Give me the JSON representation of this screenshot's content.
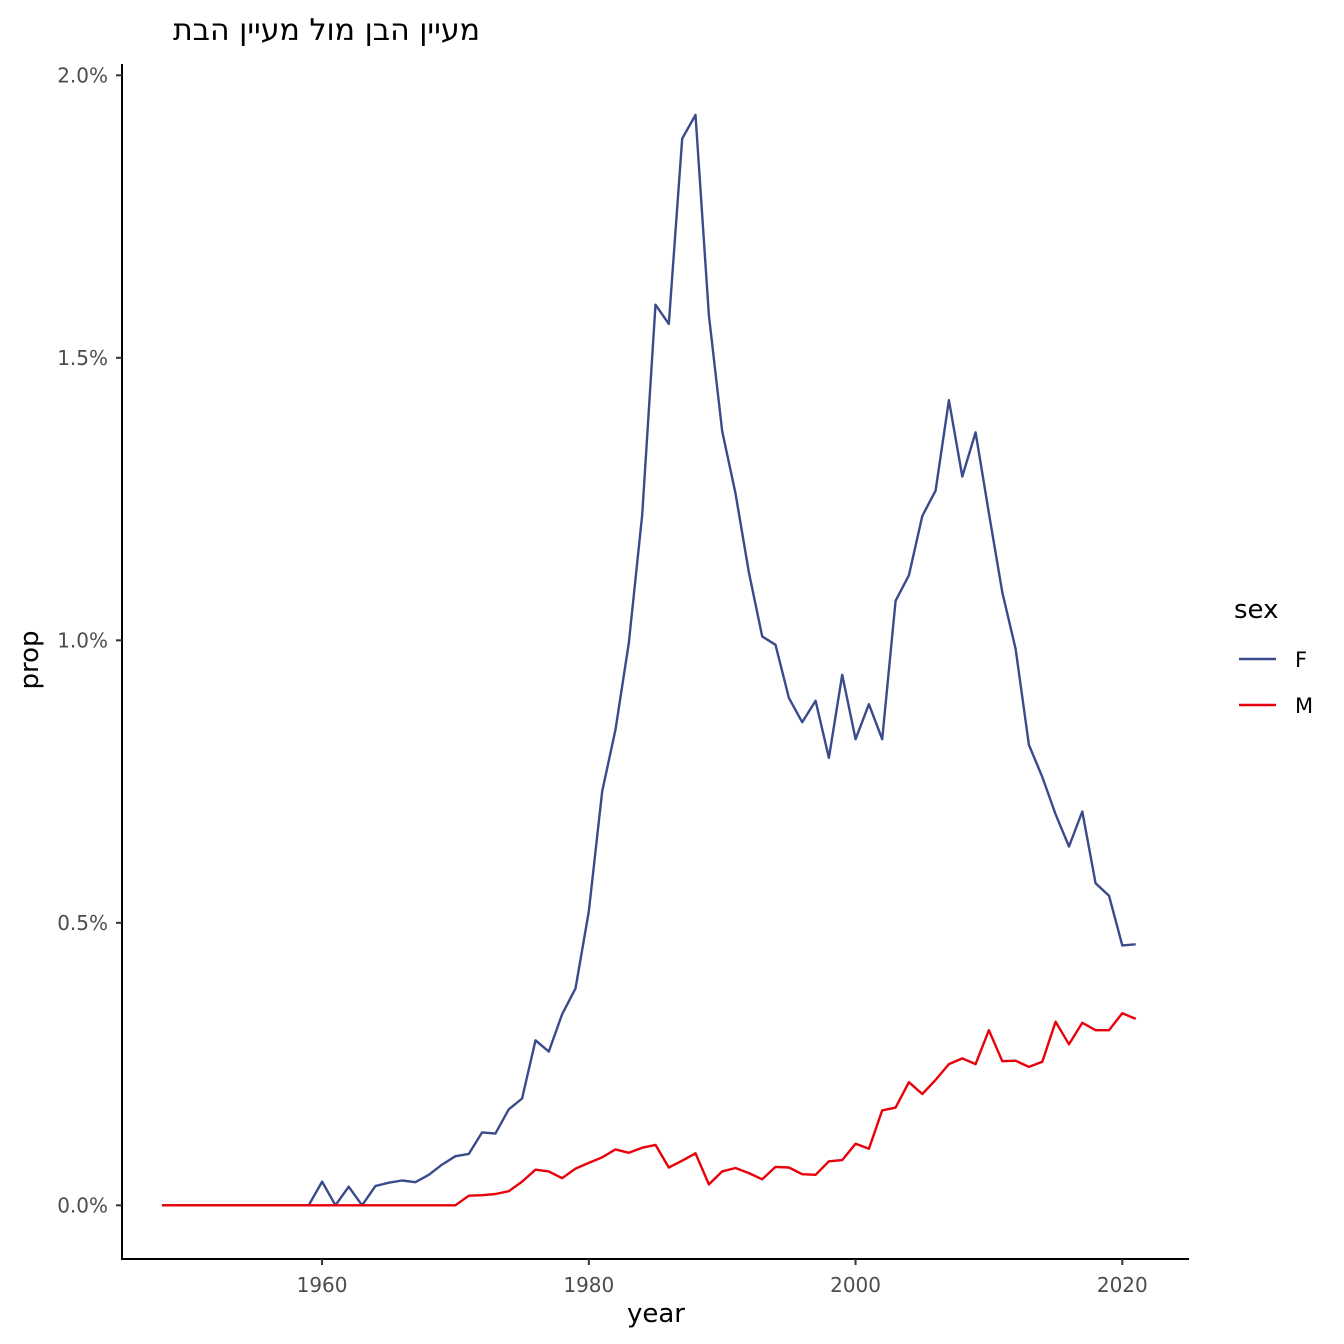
{
  "chart_data": {
    "type": "line",
    "title": "מעיין הבן מול מעיין הבת",
    "xlabel": "year",
    "ylabel": "prop",
    "xlim": [
      1945,
      2025
    ],
    "ylim": [
      -0.095,
      2.02
    ],
    "x_ticks": [
      1960,
      1980,
      2000,
      2020
    ],
    "x_tick_labels": [
      "1960",
      "1980",
      "2000",
      "2020"
    ],
    "y_ticks": [
      0,
      0.5,
      1.0,
      1.5,
      2.0
    ],
    "y_tick_labels": [
      "0.0%",
      "0.5%",
      "1.0%",
      "1.5%",
      "2.0%"
    ],
    "grid": false,
    "legend_title": "sex",
    "legend_position": "right",
    "series": [
      {
        "name": "F",
        "color": "#3b4a8a",
        "x": [
          1948,
          1949,
          1950,
          1951,
          1952,
          1953,
          1954,
          1955,
          1956,
          1957,
          1958,
          1959,
          1960,
          1961,
          1962,
          1963,
          1964,
          1965,
          1966,
          1967,
          1968,
          1969,
          1970,
          1971,
          1972,
          1973,
          1974,
          1975,
          1976,
          1977,
          1978,
          1979,
          1980,
          1981,
          1982,
          1983,
          1984,
          1985,
          1986,
          1987,
          1988,
          1989,
          1990,
          1991,
          1992,
          1993,
          1994,
          1995,
          1996,
          1997,
          1998,
          1999,
          2000,
          2001,
          2002,
          2003,
          2004,
          2005,
          2006,
          2007,
          2008,
          2009,
          2010,
          2011,
          2012,
          2013,
          2014,
          2015,
          2016,
          2017,
          2018,
          2019,
          2020,
          2021
        ],
        "y": [
          0,
          0,
          0,
          0,
          0,
          0,
          0,
          0,
          0,
          0,
          0,
          0,
          0.042,
          0,
          0.033,
          0,
          0.034,
          0.04,
          0.044,
          0.041,
          0.054,
          0.072,
          0.087,
          0.091,
          0.129,
          0.127,
          0.17,
          0.189,
          0.292,
          0.272,
          0.338,
          0.384,
          0.52,
          0.733,
          0.842,
          0.995,
          1.222,
          1.594,
          1.56,
          1.888,
          1.93,
          1.575,
          1.37,
          1.26,
          1.12,
          1.007,
          0.992,
          0.898,
          0.855,
          0.893,
          0.792,
          0.939,
          0.825,
          0.887,
          0.825,
          1.07,
          1.115,
          1.22,
          1.265,
          1.425,
          1.29,
          1.368,
          1.225,
          1.085,
          0.985,
          0.815,
          0.758,
          0.692,
          0.635,
          0.697,
          0.57,
          0.548,
          0.46,
          0.462
        ]
      },
      {
        "name": "M",
        "color": "#e8000b",
        "x": [
          1948,
          1949,
          1950,
          1951,
          1952,
          1953,
          1954,
          1955,
          1956,
          1957,
          1958,
          1959,
          1960,
          1961,
          1962,
          1963,
          1964,
          1965,
          1966,
          1967,
          1968,
          1969,
          1970,
          1971,
          1972,
          1973,
          1974,
          1975,
          1976,
          1977,
          1978,
          1979,
          1980,
          1981,
          1982,
          1983,
          1984,
          1985,
          1986,
          1987,
          1988,
          1989,
          1990,
          1991,
          1992,
          1993,
          1994,
          1995,
          1996,
          1997,
          1998,
          1999,
          2000,
          2001,
          2002,
          2003,
          2004,
          2005,
          2006,
          2007,
          2008,
          2009,
          2010,
          2011,
          2012,
          2013,
          2014,
          2015,
          2016,
          2017,
          2018,
          2019,
          2020,
          2021
        ],
        "y": [
          0,
          0,
          0,
          0,
          0,
          0,
          0,
          0,
          0,
          0,
          0,
          0,
          0,
          0,
          0,
          0,
          0,
          0,
          0,
          0,
          0,
          0,
          0,
          0.017,
          0.018,
          0.02,
          0.025,
          0.042,
          0.063,
          0.06,
          0.048,
          0.065,
          0.075,
          0.085,
          0.099,
          0.093,
          0.102,
          0.107,
          0.067,
          0.079,
          0.092,
          0.037,
          0.06,
          0.066,
          0.057,
          0.046,
          0.068,
          0.067,
          0.055,
          0.054,
          0.078,
          0.08,
          0.109,
          0.1,
          0.168,
          0.173,
          0.218,
          0.197,
          0.222,
          0.25,
          0.26,
          0.25,
          0.31,
          0.255,
          0.256,
          0.245,
          0.254,
          0.325,
          0.285,
          0.323,
          0.31,
          0.31,
          0.34,
          0.33
        ]
      }
    ]
  }
}
